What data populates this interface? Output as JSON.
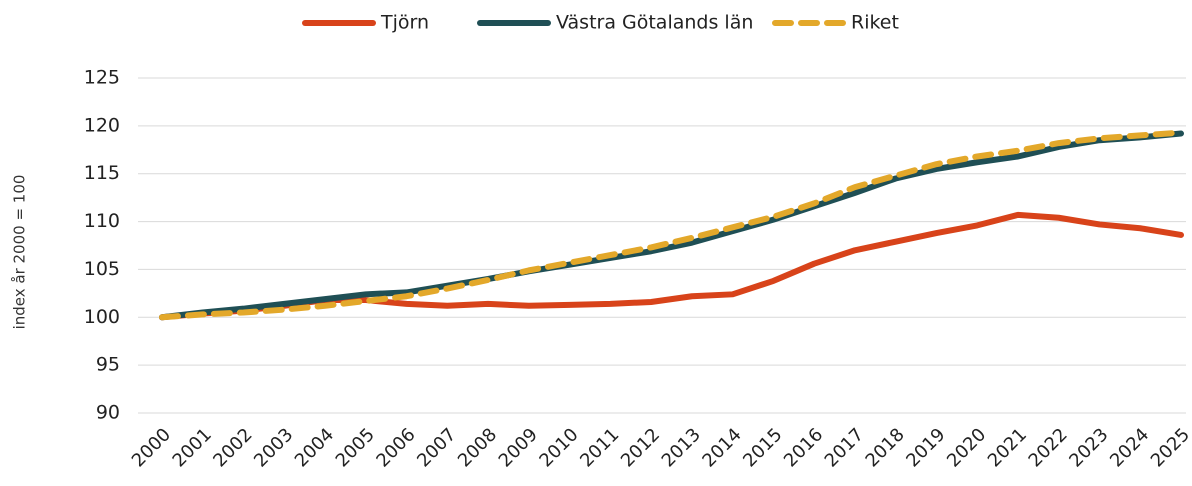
{
  "chart_data": {
    "type": "line",
    "y_label": "index år 2000 = 100",
    "categories": [
      "2000",
      "2001",
      "2002",
      "2003",
      "2004",
      "2005",
      "2006",
      "2007",
      "2008",
      "2009",
      "2010",
      "2011",
      "2012",
      "2013",
      "2014",
      "2015",
      "2016",
      "2017",
      "2018",
      "2019",
      "2020",
      "2021",
      "2022",
      "2023",
      "2024",
      "2025"
    ],
    "series": [
      {
        "name": "Tjörn",
        "color": "#d8431a",
        "dashed": false,
        "values": [
          100,
          100.4,
          100.7,
          101.2,
          101.8,
          101.8,
          101.4,
          101.2,
          101.4,
          101.2,
          101.3,
          101.4,
          101.6,
          102.2,
          102.4,
          103.8,
          105.6,
          107,
          107.9,
          108.8,
          109.6,
          110.7,
          110.4,
          109.7,
          109.3,
          108.6
        ]
      },
      {
        "name": "Västra Götalands län",
        "color": "#1f4f55",
        "dashed": false,
        "values": [
          100,
          100.5,
          100.9,
          101.4,
          101.9,
          102.4,
          102.6,
          103.3,
          104,
          104.8,
          105.5,
          106.2,
          106.9,
          107.8,
          109,
          110.2,
          111.6,
          113,
          114.5,
          115.5,
          116.2,
          116.8,
          117.8,
          118.5,
          118.8,
          119.2
        ]
      },
      {
        "name": "Riket",
        "color": "#e3a82a",
        "dashed": true,
        "values": [
          100,
          100.3,
          100.5,
          100.8,
          101.2,
          101.7,
          102.2,
          103,
          103.9,
          104.9,
          105.7,
          106.5,
          107.3,
          108.3,
          109.4,
          110.5,
          111.9,
          113.6,
          114.8,
          116,
          116.8,
          117.4,
          118.2,
          118.7,
          119,
          119.3
        ]
      }
    ],
    "ylim": [
      90,
      125
    ],
    "yticks": [
      90,
      95,
      100,
      105,
      110,
      115,
      120,
      125
    ],
    "grid": true,
    "legend": "top"
  }
}
